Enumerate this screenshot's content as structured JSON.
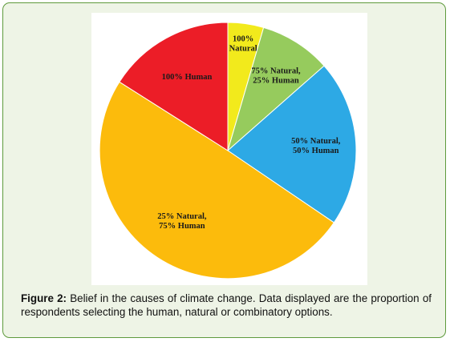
{
  "chart_data": {
    "type": "pie",
    "slices": [
      {
        "label_lines": [
          "100%",
          "Natural"
        ],
        "value": 4.5,
        "color": "#f2ea1c"
      },
      {
        "label_lines": [
          "75% Natural,",
          "25% Human"
        ],
        "value": 9.0,
        "color": "#96cb5d"
      },
      {
        "label_lines": [
          "50% Natural,",
          "50% Human"
        ],
        "value": 21.0,
        "color": "#2da9e5"
      },
      {
        "label_lines": [
          "25% Natural,",
          "75% Human"
        ],
        "value": 49.5,
        "color": "#fcbb0c"
      },
      {
        "label_lines": [
          "100% Human"
        ],
        "value": 16.0,
        "color": "#ec1d27"
      }
    ]
  },
  "caption": {
    "label": "Figure 2:",
    "text": " Belief in the causes of climate change. Data displayed are the proportion of respondents selecting the human, natural or combinatory options."
  }
}
